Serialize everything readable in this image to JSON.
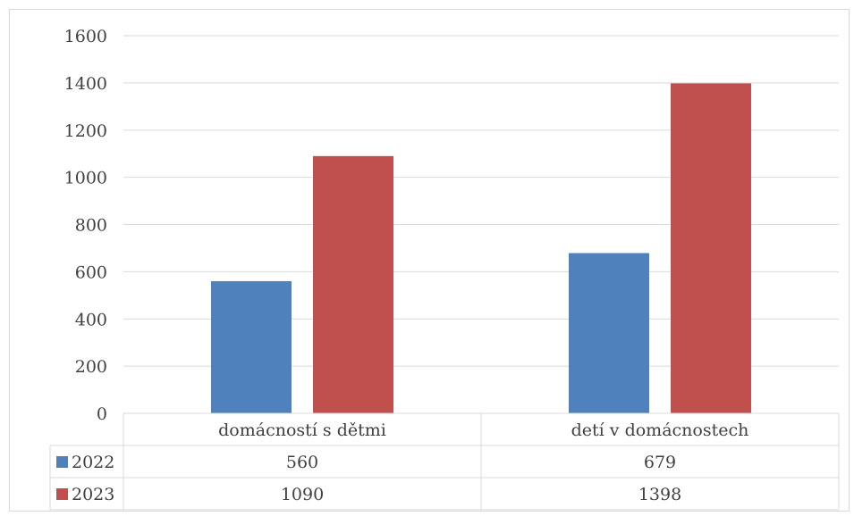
{
  "chart_data": {
    "type": "bar",
    "categories": [
      "domácností s dětmi",
      "detí v domácnostech"
    ],
    "series": [
      {
        "name": "2022",
        "values": [
          560,
          679
        ],
        "color": "#4f81bd"
      },
      {
        "name": "2023",
        "values": [
          1090,
          1398
        ],
        "color": "#c0504d"
      }
    ],
    "ylim": [
      0,
      1600
    ],
    "yticks": [
      "0",
      "200",
      "400",
      "600",
      "800",
      "1000",
      "1200",
      "1400",
      "1600"
    ],
    "grid": true,
    "legend": "data-table",
    "gridline_color": "#d9d9d9"
  }
}
